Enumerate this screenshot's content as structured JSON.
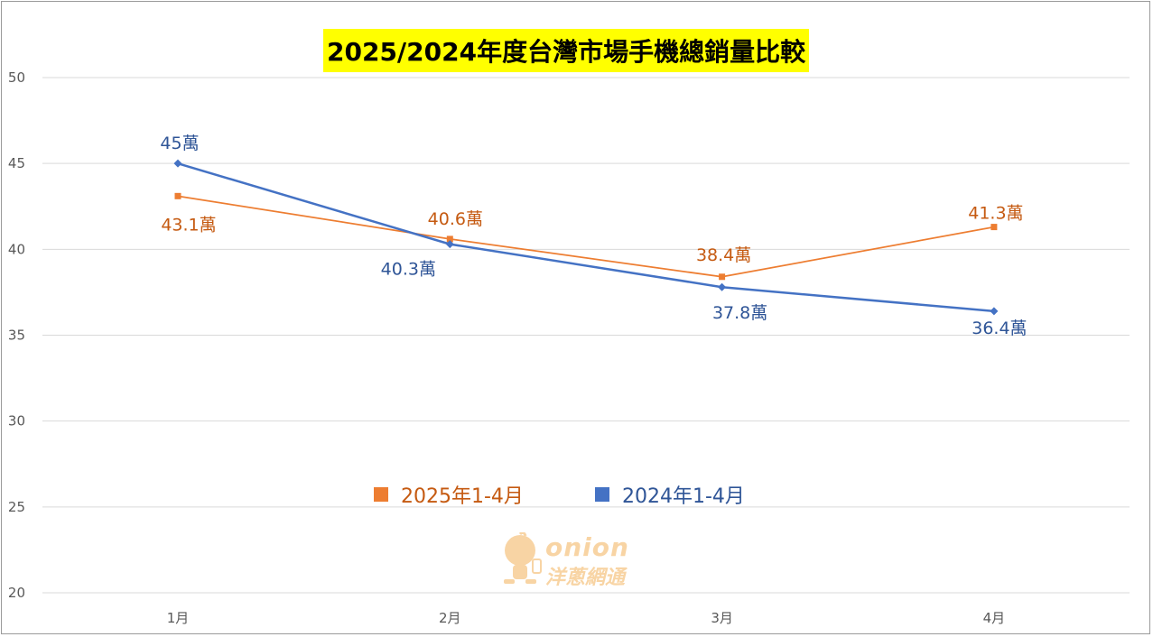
{
  "chart_data": {
    "type": "line",
    "title": "2025/2024年度台灣市場手機總銷量比較",
    "categories": [
      "1月",
      "2月",
      "3月",
      "4月"
    ],
    "ylim": [
      20,
      50
    ],
    "yticks": [
      "20",
      "25",
      "30",
      "35",
      "40",
      "45",
      "50"
    ],
    "grid": true,
    "legend_position": "center",
    "series": [
      {
        "name": "2025年1-4月",
        "color": "#ed7d31",
        "label_color": "#c55a11",
        "marker": "square",
        "values": [
          43.1,
          40.6,
          38.4,
          41.3
        ],
        "labels": [
          "43.1萬",
          "40.6萬",
          "38.4萬",
          "41.3萬"
        ]
      },
      {
        "name": "2024年1-4月",
        "color": "#4472c4",
        "label_color": "#2f5597",
        "marker": "diamond",
        "values": [
          45,
          40.3,
          37.8,
          36.4
        ],
        "labels": [
          "45萬",
          "40.3萬",
          "37.8萬",
          "36.4萬"
        ]
      }
    ]
  },
  "watermark": {
    "latin": "onion",
    "cjk": "洋蔥網通"
  }
}
